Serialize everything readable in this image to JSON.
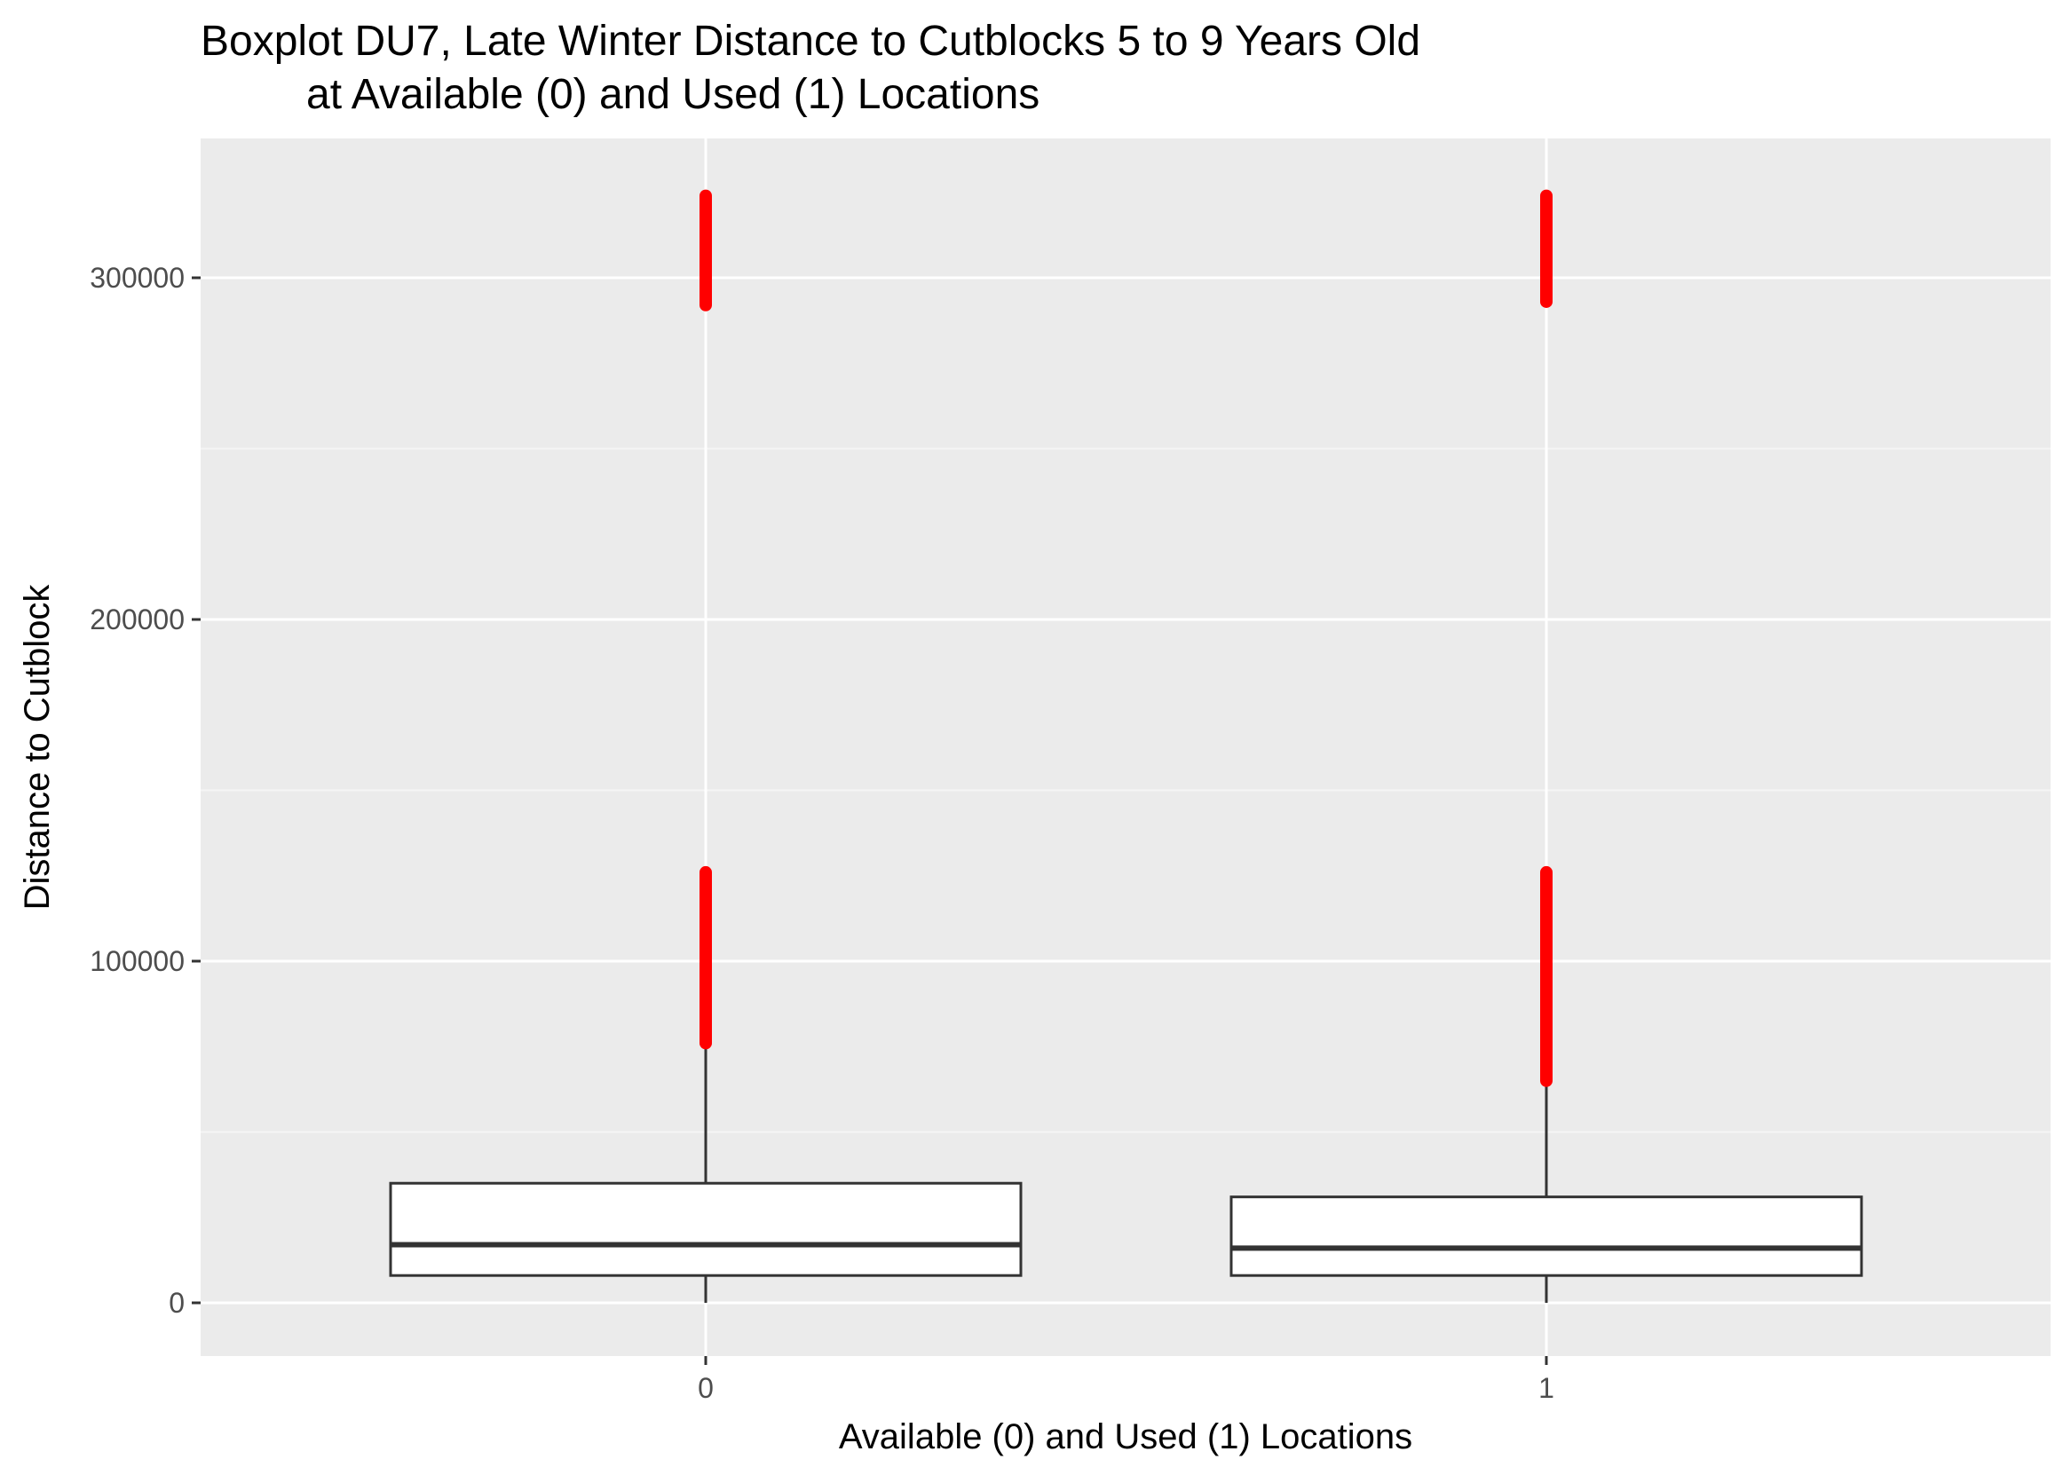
{
  "chart_data": {
    "type": "boxplot",
    "title_line1": "Boxplot DU7, Late Winter Distance to Cutblocks 5 to 9 Years Old",
    "title_line2": "at Available (0) and Used (1) Locations",
    "xlabel": "Available (0) and Used (1) Locations",
    "ylabel": "Distance to Cutblock",
    "categories": [
      "0",
      "1"
    ],
    "y_ticks": [
      0,
      100000,
      200000,
      300000
    ],
    "y_tick_labels": [
      "0",
      "100000",
      "200000",
      "300000"
    ],
    "ylim": [
      -16000,
      340000
    ],
    "grid": true,
    "boxes": [
      {
        "category": "0",
        "min": 0,
        "q1": 8000,
        "median": 17000,
        "q3": 35000,
        "whisker_high": 76000,
        "outlier_ranges": [
          [
            76000,
            126000
          ],
          [
            292000,
            324000
          ]
        ]
      },
      {
        "category": "1",
        "min": 0,
        "q1": 8000,
        "median": 16000,
        "q3": 31000,
        "whisker_high": 65000,
        "outlier_ranges": [
          [
            65000,
            126000
          ],
          [
            293000,
            324000
          ]
        ]
      }
    ],
    "colors": {
      "panel_background": "#ebebeb",
      "grid_major": "#ffffff",
      "grid_minor": "#f5f5f5",
      "box_fill": "#ffffff",
      "box_line": "#333333",
      "outlier": "#ff0000",
      "tick_mark": "#333333"
    }
  }
}
